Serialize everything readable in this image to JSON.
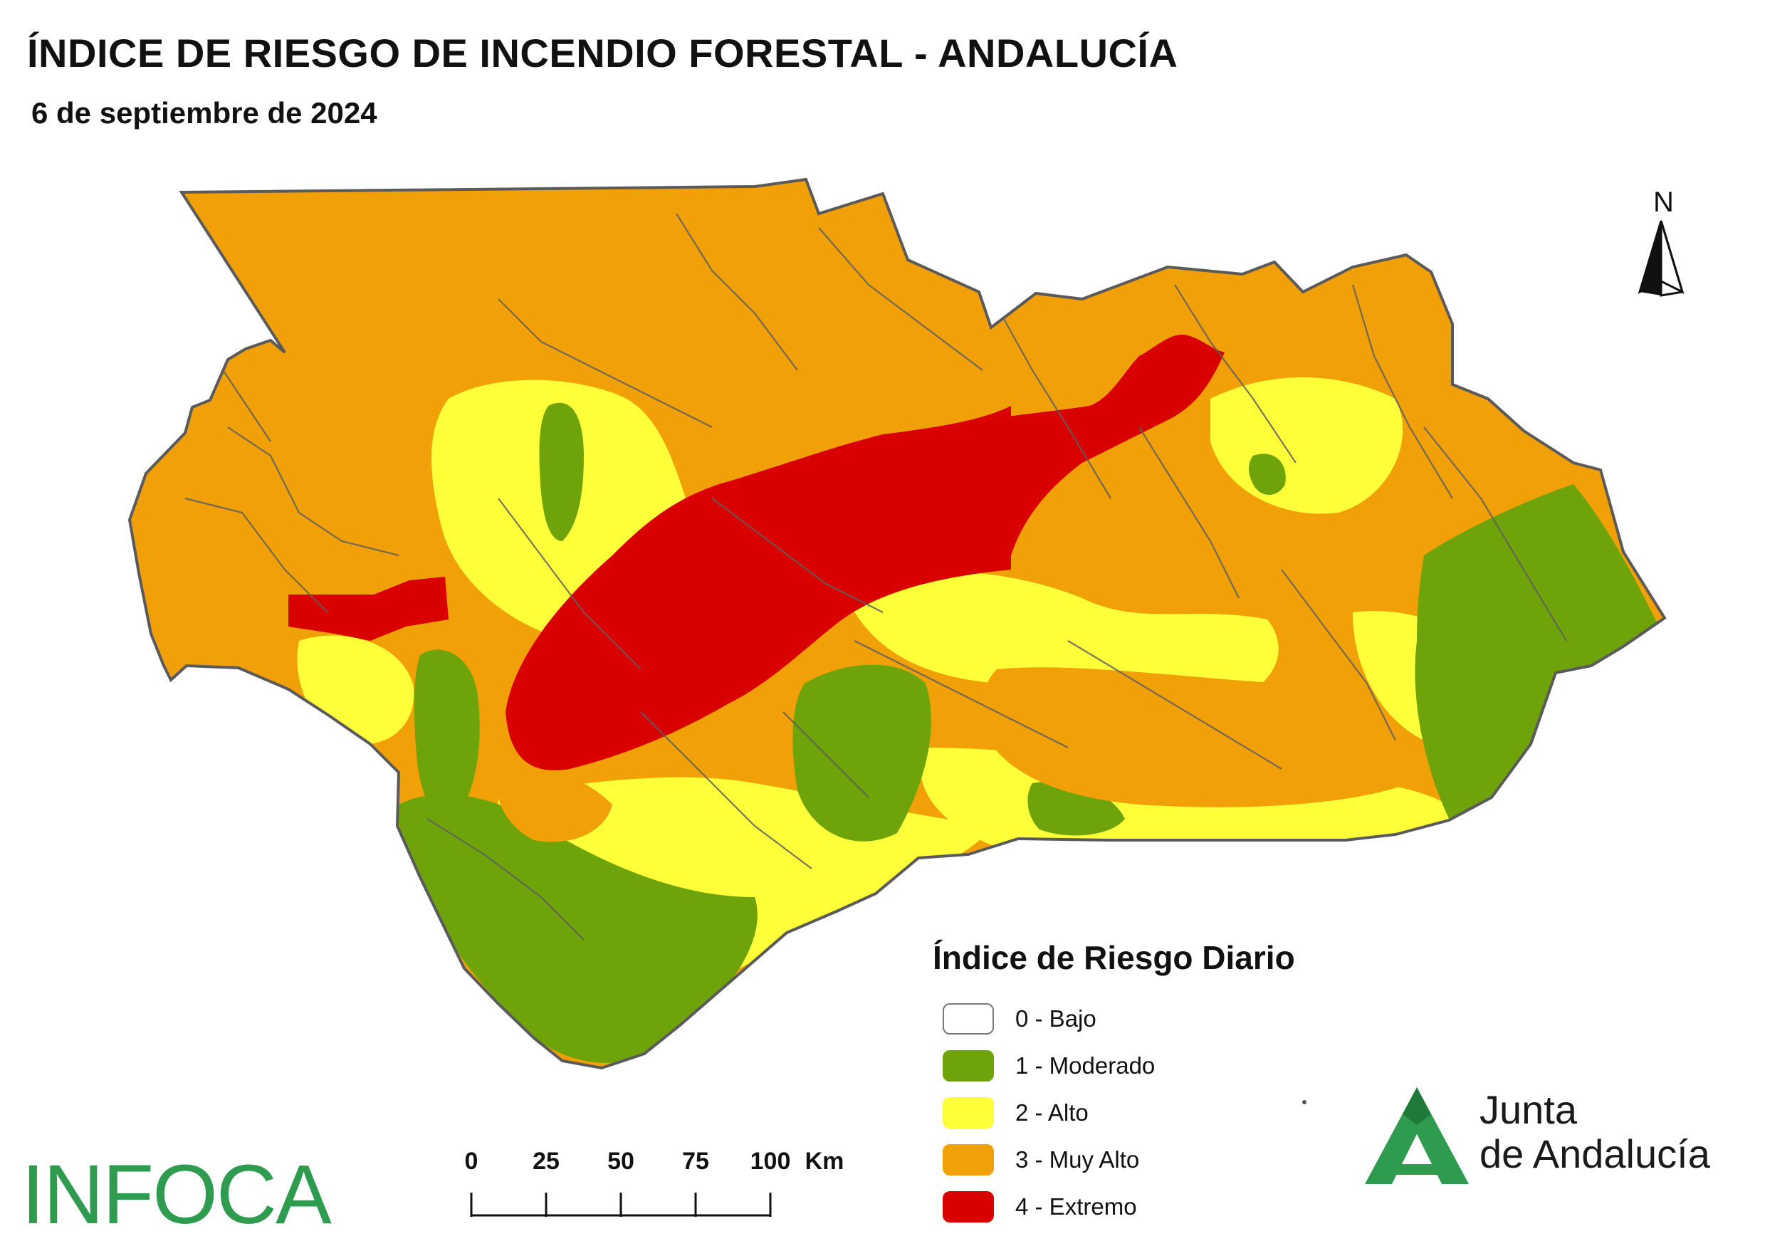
{
  "title": "ÍNDICE DE RIESGO DE INCENDIO FORESTAL - ANDALUCÍA",
  "subtitle": "6 de septiembre de 2024",
  "north_label": "N",
  "legend": {
    "title": "Índice de Riesgo Diario",
    "items": [
      {
        "label": "0 - Bajo",
        "color": "#ffffff"
      },
      {
        "label": "1 - Moderado",
        "color": "#6ea40a"
      },
      {
        "label": "2 - Alto",
        "color": "#ffff3a"
      },
      {
        "label": "3 - Muy Alto",
        "color": "#f2a007"
      },
      {
        "label": "4 - Extremo",
        "color": "#d90000"
      }
    ]
  },
  "scale_bar": {
    "ticks": [
      "0",
      "25",
      "50",
      "75",
      "100"
    ],
    "unit": "Km"
  },
  "logos": {
    "infoca": "INFOCA",
    "junta_line1": "Junta",
    "junta_line2": "de Andalucía"
  }
}
